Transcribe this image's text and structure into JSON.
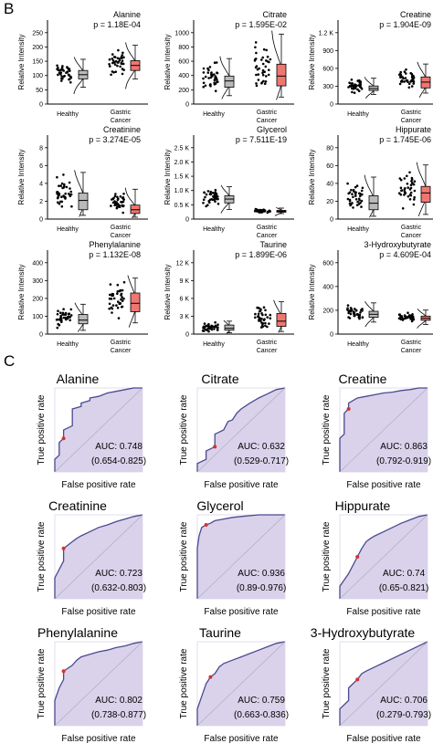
{
  "figure": {
    "panel_b_letter": "B",
    "panel_c_letter": "C"
  },
  "box_panel": {
    "ylabel": "Relative Intensity",
    "group_labels": [
      "Healthy",
      "Gastric",
      "Cancer"
    ],
    "colors": {
      "healthy_box": "#b9b9b9",
      "cancer_box": "#f07670",
      "points": "#000000"
    }
  },
  "roc_panel": {
    "xlabel": "False positive rate",
    "ylabel": "True positive rate",
    "auc_prefix": "AUC: ",
    "colors": {
      "fill": "#d9d2ea",
      "curve": "#4a4a90",
      "frame": "#e3ddee"
    }
  },
  "chart_data": [
    {
      "type": "box",
      "title": "Alanine",
      "p_label": "p = 1.18E-04",
      "yticks": [
        "0",
        "50",
        "100",
        "150",
        "200",
        "250"
      ],
      "ylim": [
        0,
        300
      ],
      "healthy": {
        "q1": 90,
        "median": 105,
        "q3": 120,
        "whisker_low": 60,
        "whisker_high": 160
      },
      "cancer": {
        "q1": 120,
        "median": 138,
        "q3": 155,
        "whisker_low": 90,
        "whisker_high": 210
      }
    },
    {
      "type": "box",
      "title": "Citrate",
      "p_label": "p = 1.595E-02",
      "yticks": [
        "0",
        "200",
        "400",
        "600",
        "800",
        "1000"
      ],
      "ylim": [
        0,
        1200
      ],
      "healthy": {
        "q1": 240,
        "median": 330,
        "q3": 400,
        "whisker_low": 120,
        "whisker_high": 650
      },
      "cancer": {
        "q1": 260,
        "median": 400,
        "q3": 570,
        "whisker_low": 100,
        "whisker_high": 1000
      }
    },
    {
      "type": "box",
      "title": "Creatine",
      "p_label": "p = 1.904E-09",
      "yticks": [
        "0",
        "300",
        "600",
        "900",
        "1.2 K"
      ],
      "ylim": [
        0,
        1300
      ],
      "healthy": {
        "q1": 210,
        "median": 240,
        "q3": 280,
        "whisker_low": 150,
        "whisker_high": 400
      },
      "cancer": {
        "q1": 250,
        "median": 340,
        "q3": 420,
        "whisker_low": 170,
        "whisker_high": 620
      }
    },
    {
      "type": "box",
      "title": "Creatinine",
      "p_label": "p = 3.274E-05",
      "yticks": [
        "0",
        "2",
        "4",
        "6",
        "8"
      ],
      "ylim": [
        0,
        9
      ],
      "healthy": {
        "q1": 1.0,
        "median": 2.0,
        "q3": 2.8,
        "whisker_low": 0.4,
        "whisker_high": 5.0
      },
      "cancer": {
        "q1": 0.6,
        "median": 1.0,
        "q3": 1.5,
        "whisker_low": 0.2,
        "whisker_high": 3.2
      }
    },
    {
      "type": "box",
      "title": "Glycerol",
      "p_label": "p = 7.511E-19",
      "yticks": [
        "0",
        "0.5 K",
        "1.0 K",
        "1.5 K",
        "2.0 K",
        "2.5 K"
      ],
      "ylim": [
        0,
        2600
      ],
      "healthy": {
        "q1": 500,
        "median": 620,
        "q3": 720,
        "whisker_low": 300,
        "whisker_high": 1000
      },
      "cancer": {
        "q1": 220,
        "median": 240,
        "q3": 270,
        "whisker_low": 170,
        "whisker_high": 340
      }
    },
    {
      "type": "box",
      "title": "Hippurate",
      "p_label": "p = 1.745E-06",
      "yticks": [
        "0",
        "20",
        "40",
        "60",
        "80"
      ],
      "ylim": [
        0,
        90
      ],
      "healthy": {
        "q1": 10,
        "median": 17,
        "q3": 25,
        "whisker_low": 3,
        "whisker_high": 45
      },
      "cancer": {
        "q1": 18,
        "median": 28,
        "q3": 35,
        "whisker_low": 5,
        "whisker_high": 58
      }
    },
    {
      "type": "box",
      "title": "Phenylalanine",
      "p_label": "p = 1.132E-08",
      "yticks": [
        "0",
        "100",
        "200",
        "300",
        "400"
      ],
      "ylim": [
        0,
        450
      ],
      "healthy": {
        "q1": 55,
        "median": 75,
        "q3": 105,
        "whisker_low": 20,
        "whisker_high": 160
      },
      "cancer": {
        "q1": 120,
        "median": 165,
        "q3": 220,
        "whisker_low": 60,
        "whisker_high": 300
      }
    },
    {
      "type": "box",
      "title": "Taurine",
      "p_label": "p = 1.899E-06",
      "yticks": [
        "0",
        "3 K",
        "6 K",
        "9 K",
        "12 K"
      ],
      "ylim": [
        0,
        13000
      ],
      "healthy": {
        "q1": 600,
        "median": 900,
        "q3": 1400,
        "whisker_low": 200,
        "whisker_high": 2000
      },
      "cancer": {
        "q1": 1200,
        "median": 2000,
        "q3": 3200,
        "whisker_low": 400,
        "whisker_high": 5000
      }
    },
    {
      "type": "box",
      "title": "3-Hydroxybutyrate",
      "p_label": "p = 4.609E-04",
      "yticks": [
        "0",
        "200",
        "400",
        "600"
      ],
      "ylim": [
        0,
        700
      ],
      "healthy": {
        "q1": 140,
        "median": 165,
        "q3": 190,
        "whisker_low": 100,
        "whisker_high": 260
      },
      "cancer": {
        "q1": 115,
        "median": 132,
        "q3": 150,
        "whisker_low": 80,
        "whisker_high": 200
      }
    },
    {
      "type": "line",
      "title": "Alanine",
      "auc": "0.748",
      "ci": "(0.654-0.825)",
      "x": [
        0,
        0,
        0.05,
        0.05,
        0.1,
        0.1,
        0.2,
        0.2,
        0.3,
        0.3,
        0.4,
        0.4,
        0.5,
        0.55,
        0.6,
        0.7,
        0.8,
        0.9,
        1
      ],
      "y": [
        0,
        0.15,
        0.2,
        0.35,
        0.4,
        0.5,
        0.55,
        0.75,
        0.78,
        0.82,
        0.85,
        0.88,
        0.9,
        0.92,
        0.94,
        0.96,
        0.98,
        1,
        1
      ]
    },
    {
      "type": "line",
      "title": "Citrate",
      "auc": "0.632",
      "ci": "(0.529-0.717)",
      "x": [
        0,
        0,
        0.1,
        0.1,
        0.2,
        0.2,
        0.3,
        0.35,
        0.4,
        0.45,
        0.5,
        0.6,
        0.7,
        0.8,
        0.9,
        1
      ],
      "y": [
        0,
        0.1,
        0.15,
        0.25,
        0.3,
        0.45,
        0.5,
        0.6,
        0.62,
        0.7,
        0.75,
        0.82,
        0.88,
        0.93,
        0.98,
        1
      ]
    },
    {
      "type": "line",
      "title": "Creatine",
      "auc": "0.863",
      "ci": "(0.792-0.919)",
      "x": [
        0,
        0,
        0.05,
        0.05,
        0.1,
        0.1,
        0.15,
        0.2,
        0.3,
        0.4,
        0.5,
        0.6,
        0.7,
        0.8,
        0.9,
        1
      ],
      "y": [
        0,
        0.4,
        0.45,
        0.7,
        0.75,
        0.82,
        0.85,
        0.88,
        0.9,
        0.92,
        0.94,
        0.95,
        0.97,
        0.98,
        1,
        1
      ]
    },
    {
      "type": "line",
      "title": "Creatinine",
      "auc": "0.723",
      "ci": "(0.632-0.803)",
      "x": [
        0,
        0,
        0.05,
        0.1,
        0.1,
        0.2,
        0.25,
        0.3,
        0.4,
        0.5,
        0.6,
        0.7,
        0.8,
        0.9,
        1
      ],
      "y": [
        0,
        0.25,
        0.35,
        0.45,
        0.6,
        0.68,
        0.72,
        0.75,
        0.8,
        0.85,
        0.88,
        0.92,
        0.95,
        0.98,
        1
      ]
    },
    {
      "type": "line",
      "title": "Glycerol",
      "auc": "0.936",
      "ci": "(0.89-0.976)",
      "x": [
        0,
        0,
        0.02,
        0.05,
        0.1,
        0.15,
        0.2,
        0.3,
        0.4,
        0.5,
        0.7,
        1
      ],
      "y": [
        0,
        0.6,
        0.75,
        0.85,
        0.88,
        0.9,
        0.93,
        0.95,
        0.97,
        0.98,
        1,
        1
      ]
    },
    {
      "type": "line",
      "title": "Hippurate",
      "auc": "0.74",
      "ci": "(0.65-0.821)",
      "x": [
        0,
        0,
        0.1,
        0.15,
        0.2,
        0.25,
        0.3,
        0.35,
        0.4,
        0.5,
        0.6,
        0.7,
        0.8,
        0.9,
        1
      ],
      "y": [
        0,
        0.15,
        0.3,
        0.4,
        0.5,
        0.6,
        0.68,
        0.72,
        0.75,
        0.8,
        0.85,
        0.9,
        0.94,
        0.98,
        1
      ]
    },
    {
      "type": "line",
      "title": "Phenylalanine",
      "auc": "0.802",
      "ci": "(0.738-0.877)",
      "x": [
        0,
        0,
        0.05,
        0.1,
        0.1,
        0.2,
        0.25,
        0.3,
        0.4,
        0.5,
        0.6,
        0.7,
        0.8,
        0.9,
        1
      ],
      "y": [
        0,
        0.3,
        0.45,
        0.55,
        0.65,
        0.72,
        0.78,
        0.82,
        0.85,
        0.88,
        0.9,
        0.93,
        0.95,
        0.98,
        1
      ]
    },
    {
      "type": "line",
      "title": "Taurine",
      "auc": "0.759",
      "ci": "(0.663-0.836)",
      "x": [
        0,
        0,
        0.05,
        0.1,
        0.15,
        0.2,
        0.25,
        0.3,
        0.4,
        0.5,
        0.6,
        0.7,
        0.8,
        0.9,
        1
      ],
      "y": [
        0,
        0.2,
        0.35,
        0.5,
        0.58,
        0.62,
        0.7,
        0.74,
        0.78,
        0.82,
        0.86,
        0.9,
        0.94,
        0.98,
        1
      ]
    },
    {
      "type": "line",
      "title": "3-Hydroxybutyrate",
      "auc": "0.706",
      "ci": "(0.279-0.793)",
      "x": [
        0,
        0,
        0.1,
        0.1,
        0.2,
        0.25,
        0.3,
        0.4,
        0.5,
        0.6,
        0.7,
        0.8,
        0.9,
        1
      ],
      "y": [
        0,
        0.2,
        0.3,
        0.45,
        0.55,
        0.62,
        0.65,
        0.7,
        0.75,
        0.8,
        0.85,
        0.9,
        0.95,
        1
      ]
    }
  ]
}
